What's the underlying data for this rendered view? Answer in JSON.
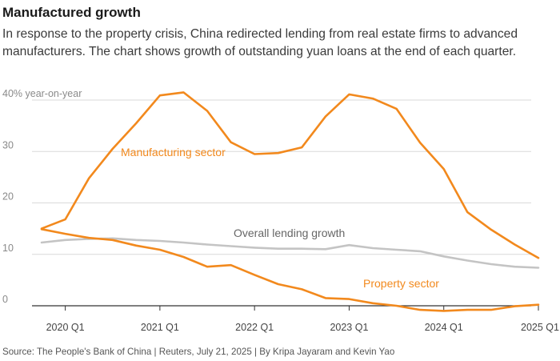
{
  "header": {
    "title": "Manufactured growth",
    "subtitle": "In response to the property crisis, China redirected lending from real estate firms to advanced manufacturers. The chart shows growth of outstanding yuan loans at the end of each quarter."
  },
  "footer": {
    "source": "Source: The People's Bank of China | Reuters, July 21, 2025 | By Kripa Jayaram and Kevin Yao"
  },
  "colors": {
    "accent": "#f2891d",
    "overall": "#c4c4c4",
    "grid": "#d9d9d9",
    "zero_line": "#333333"
  },
  "chart_data": {
    "type": "line",
    "title": "Manufactured growth",
    "ylabel": "% year-on-year",
    "ylim": [
      0,
      40
    ],
    "yticks": [
      {
        "value": 40,
        "label": "40% year-on-year"
      },
      {
        "value": 30,
        "label": "30"
      },
      {
        "value": 20,
        "label": "20"
      },
      {
        "value": 10,
        "label": "10"
      },
      {
        "value": 0,
        "label": "0"
      }
    ],
    "xlim": [
      -1.2,
      20.4
    ],
    "xticks": [
      {
        "value": 0,
        "label": "2020 Q1"
      },
      {
        "value": 4,
        "label": "2021 Q1"
      },
      {
        "value": 8,
        "label": "2022 Q1"
      },
      {
        "value": 12,
        "label": "2023 Q1"
      },
      {
        "value": 16,
        "label": "2024 Q1"
      },
      {
        "value": 20,
        "label": "2025 Q1"
      }
    ],
    "x": [
      -1,
      0,
      1,
      2,
      3,
      4,
      5,
      6,
      7,
      8,
      9,
      10,
      11,
      12,
      13,
      14,
      15,
      16,
      17,
      18,
      19,
      20
    ],
    "grid": true,
    "legend": "inline labels",
    "series": [
      {
        "name": "Manufacturing sector",
        "color": "#f2891d",
        "values": [
          15.0,
          16.8,
          24.8,
          30.5,
          35.5,
          40.9,
          41.5,
          37.9,
          31.8,
          29.5,
          29.7,
          30.8,
          36.8,
          41.1,
          40.3,
          38.3,
          31.7,
          26.6,
          18.2,
          14.8,
          11.9,
          9.3
        ]
      },
      {
        "name": "Overall lending growth",
        "color": "#c4c4c4",
        "values": [
          12.3,
          12.8,
          13.0,
          13.1,
          12.8,
          12.6,
          12.3,
          11.9,
          11.6,
          11.3,
          11.1,
          11.1,
          11.0,
          11.8,
          11.2,
          10.9,
          10.6,
          9.6,
          8.8,
          8.1,
          7.6,
          7.4
        ]
      },
      {
        "name": "Property sector",
        "color": "#f2891d",
        "values": [
          14.9,
          14.0,
          13.2,
          12.8,
          11.7,
          10.9,
          9.5,
          7.6,
          7.9,
          6.0,
          4.2,
          3.2,
          1.5,
          1.3,
          0.5,
          0.0,
          -0.8,
          -1.0,
          -0.8,
          -0.8,
          -0.1,
          0.2
        ]
      }
    ]
  }
}
